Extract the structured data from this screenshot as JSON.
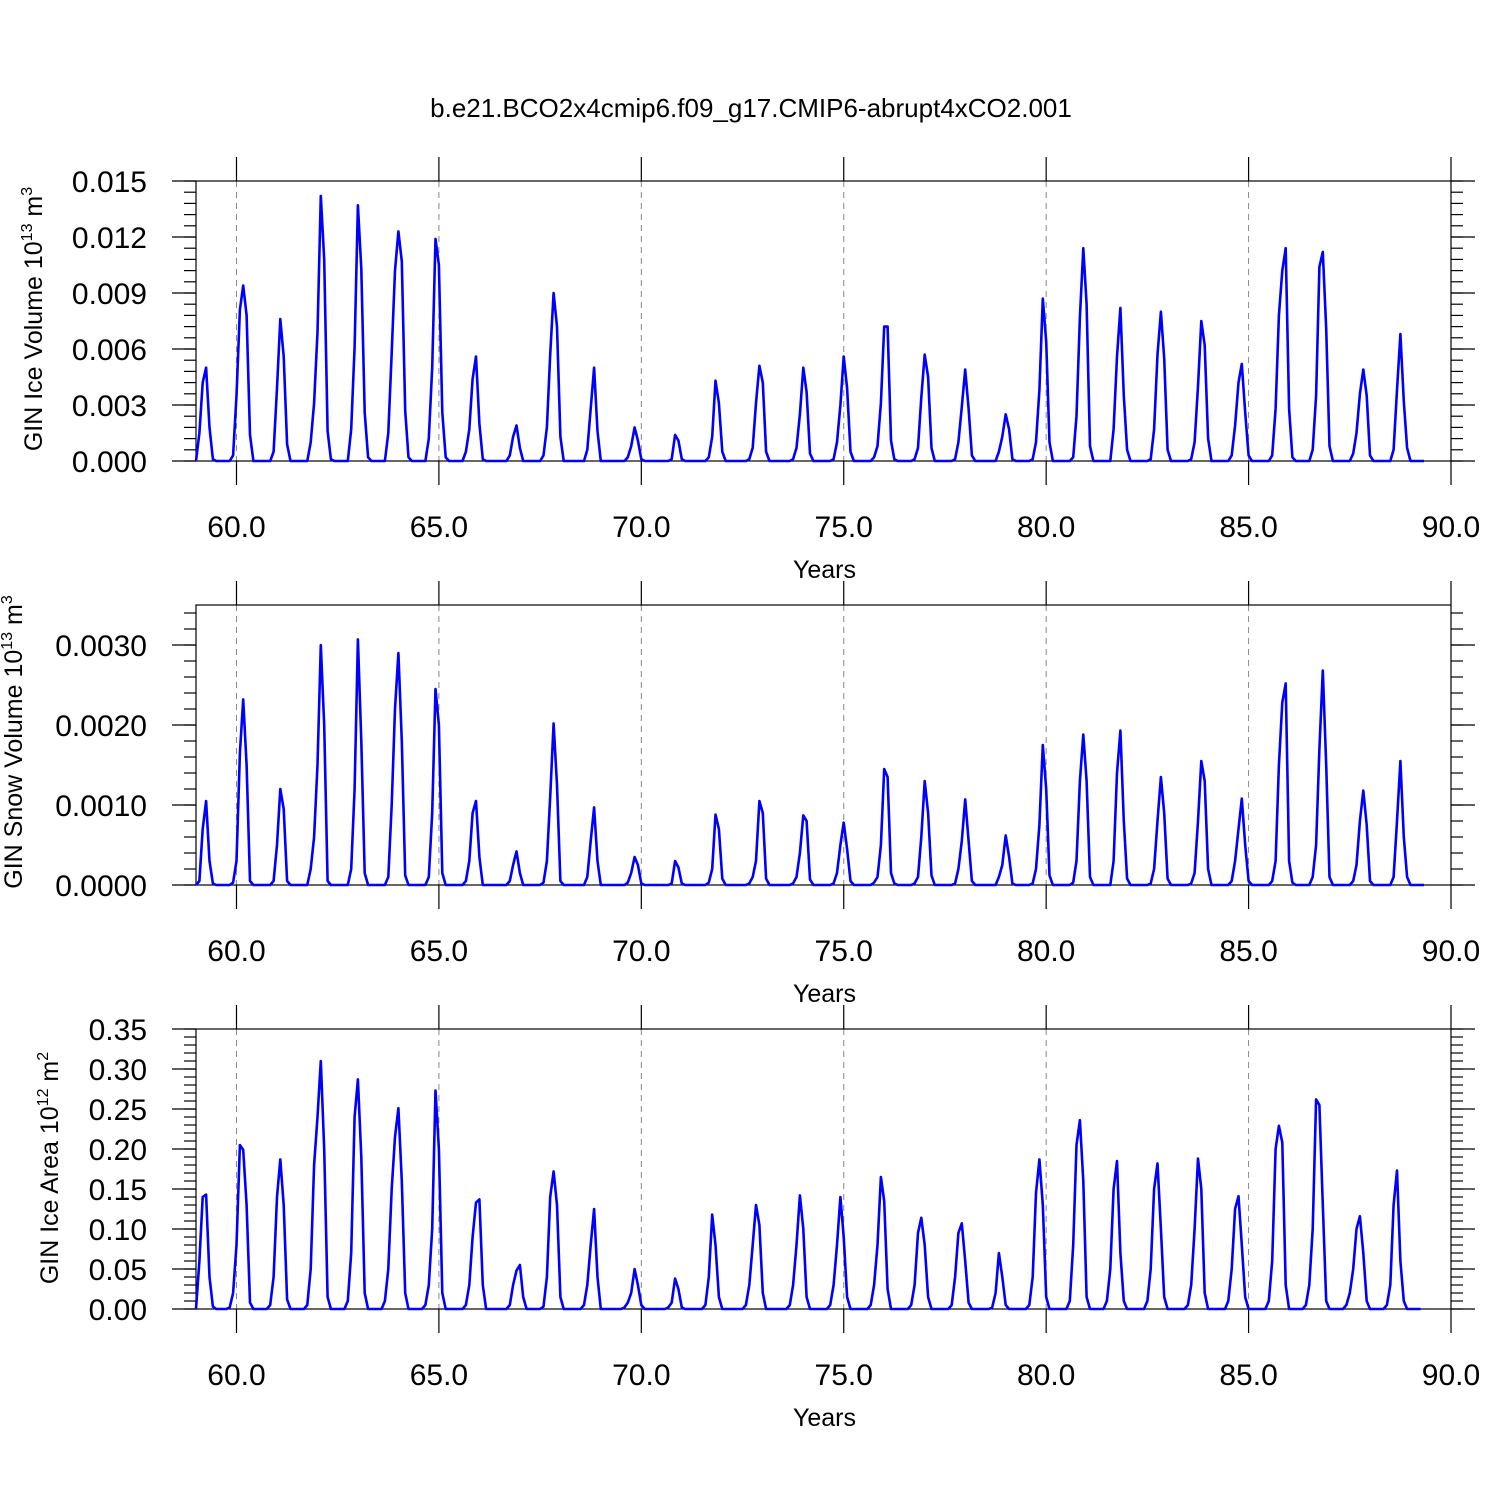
{
  "title": "b.e21.BCO2x4cmip6.f09_g17.CMIP6-abrupt4xCO2.001",
  "colors": {
    "line": "#0000ff",
    "grid": "#888888",
    "axis": "#000000"
  },
  "chart_data": [
    {
      "type": "line",
      "series_name": "GIN Ice Volume",
      "ylabel": "GIN Ice Volume 10",
      "ylabel_exponent": "13",
      "ylabel_unit": "m",
      "ylabel_unit_exponent": "3",
      "xlabel": "Years",
      "xlim": [
        59.0,
        90.0
      ],
      "ylim": [
        0.0,
        0.015
      ],
      "xticks": [
        60,
        65,
        70,
        75,
        80,
        85,
        90
      ],
      "xtick_labels": [
        "60.0",
        "65.0",
        "70.0",
        "75.0",
        "80.0",
        "85.0",
        "90.0"
      ],
      "yticks": [
        0.0,
        0.003,
        0.006,
        0.009,
        0.012,
        0.015
      ],
      "ytick_labels": [
        "0.000",
        "0.003",
        "0.006",
        "0.009",
        "0.012",
        "0.015"
      ],
      "grid": "vertical dashed at major x ticks",
      "start_year": 59.0,
      "values": [
        0.0,
        0.0015,
        0.0042,
        0.005,
        0.0018,
        0.0001,
        0.0,
        0.0,
        0.0,
        0.0,
        0.0,
        0.0003,
        0.0035,
        0.0081,
        0.0094,
        0.0078,
        0.0014,
        0.0,
        0.0,
        0.0,
        0.0,
        0.0,
        0.0,
        0.0005,
        0.0039,
        0.0076,
        0.0056,
        0.0009,
        0.0,
        0.0,
        0.0,
        0.0,
        0.0,
        0.0,
        0.001,
        0.0031,
        0.0069,
        0.0142,
        0.0108,
        0.0016,
        0.0001,
        0.0,
        0.0,
        0.0,
        0.0,
        0.0,
        0.0017,
        0.0061,
        0.0137,
        0.0103,
        0.0026,
        0.0002,
        0.0,
        0.0,
        0.0,
        0.0,
        0.0,
        0.0015,
        0.0058,
        0.0102,
        0.0123,
        0.0107,
        0.0027,
        0.0002,
        0.0,
        0.0,
        0.0,
        0.0,
        0.0,
        0.0012,
        0.005,
        0.0119,
        0.0105,
        0.0026,
        0.0002,
        0.0,
        0.0,
        0.0,
        0.0,
        0.0,
        0.0005,
        0.0017,
        0.0044,
        0.0056,
        0.002,
        0.0001,
        0.0,
        0.0,
        0.0,
        0.0,
        0.0,
        0.0,
        0.0,
        0.0003,
        0.0013,
        0.0019,
        0.0007,
        0.0,
        0.0,
        0.0,
        0.0,
        0.0,
        0.0,
        0.0003,
        0.0018,
        0.0057,
        0.009,
        0.0072,
        0.0013,
        0.0,
        0.0,
        0.0,
        0.0,
        0.0,
        0.0,
        0.0,
        0.0006,
        0.0028,
        0.005,
        0.0016,
        0.0,
        0.0,
        0.0,
        0.0,
        0.0,
        0.0,
        0.0,
        0.0,
        0.0002,
        0.0008,
        0.0018,
        0.0011,
        0.0001,
        0.0,
        0.0,
        0.0,
        0.0,
        0.0,
        0.0,
        0.0,
        0.0,
        0.0001,
        0.0014,
        0.0011,
        0.0001,
        0.0,
        0.0,
        0.0,
        0.0,
        0.0,
        0.0,
        0.0,
        0.0002,
        0.0013,
        0.0043,
        0.0031,
        0.0005,
        0.0,
        0.0,
        0.0,
        0.0,
        0.0,
        0.0,
        0.0,
        0.0001,
        0.0007,
        0.0031,
        0.0051,
        0.0042,
        0.0005,
        0.0,
        0.0,
        0.0,
        0.0,
        0.0,
        0.0,
        0.0,
        0.0001,
        0.0007,
        0.0025,
        0.005,
        0.0037,
        0.0004,
        0.0,
        0.0,
        0.0,
        0.0,
        0.0,
        0.0,
        0.0001,
        0.001,
        0.003,
        0.0056,
        0.0039,
        0.0005,
        0.0,
        0.0,
        0.0,
        0.0,
        0.0,
        0.0,
        0.0002,
        0.0008,
        0.0031,
        0.0072,
        0.0072,
        0.0011,
        0.0001,
        0.0,
        0.0,
        0.0,
        0.0,
        0.0,
        0.0001,
        0.0007,
        0.0034,
        0.0057,
        0.0045,
        0.0007,
        0.0,
        0.0,
        0.0,
        0.0,
        0.0,
        0.0,
        0.0001,
        0.001,
        0.0029,
        0.0049,
        0.0028,
        0.0003,
        0.0,
        0.0,
        0.0,
        0.0,
        0.0,
        0.0,
        0.0,
        0.0005,
        0.0013,
        0.0025,
        0.0017,
        0.0001,
        0.0,
        0.0,
        0.0,
        0.0,
        0.0,
        0.0001,
        0.001,
        0.0038,
        0.0087,
        0.0064,
        0.001,
        0.0,
        0.0,
        0.0,
        0.0,
        0.0,
        0.0,
        0.0002,
        0.0024,
        0.0077,
        0.0114,
        0.0084,
        0.0008,
        0.0,
        0.0,
        0.0,
        0.0,
        0.0,
        0.0,
        0.0017,
        0.0056,
        0.0082,
        0.0035,
        0.0006,
        0.0,
        0.0,
        0.0,
        0.0,
        0.0,
        0.0,
        0.0001,
        0.0017,
        0.0057,
        0.008,
        0.0055,
        0.0006,
        0.0,
        0.0,
        0.0,
        0.0,
        0.0,
        0.0,
        0.0001,
        0.001,
        0.004,
        0.0075,
        0.0062,
        0.0012,
        0.0,
        0.0,
        0.0,
        0.0,
        0.0,
        0.0,
        0.0003,
        0.0019,
        0.0042,
        0.0052,
        0.0026,
        0.0003,
        0.0,
        0.0,
        0.0,
        0.0,
        0.0,
        0.0,
        0.0003,
        0.0028,
        0.0078,
        0.0102,
        0.0114,
        0.0028,
        0.0002,
        0.0,
        0.0,
        0.0,
        0.0,
        0.0,
        0.0006,
        0.0035,
        0.0104,
        0.0112,
        0.0071,
        0.0008,
        0.0,
        0.0,
        0.0,
        0.0,
        0.0,
        0.0,
        0.0004,
        0.0015,
        0.0036,
        0.0049,
        0.0035,
        0.0003,
        0.0,
        0.0,
        0.0,
        0.0,
        0.0,
        0.0,
        0.0006,
        0.0038,
        0.0068,
        0.0032,
        0.0007,
        0.0,
        0.0,
        0.0,
        0.0,
        0.0
      ]
    },
    {
      "type": "line",
      "series_name": "GIN Snow Volume",
      "ylabel": "GIN Snow Volume 10",
      "ylabel_exponent": "13",
      "ylabel_unit": "m",
      "ylabel_unit_exponent": "3",
      "xlabel": "Years",
      "xlim": [
        59.0,
        90.0
      ],
      "ylim": [
        0.0,
        0.0035
      ],
      "xticks": [
        60,
        65,
        70,
        75,
        80,
        85,
        90
      ],
      "xtick_labels": [
        "60.0",
        "65.0",
        "70.0",
        "75.0",
        "80.0",
        "85.0",
        "90.0"
      ],
      "yticks": [
        0.0,
        0.001,
        0.002,
        0.003
      ],
      "ytick_labels": [
        "0.0000",
        "0.0010",
        "0.0020",
        "0.0030"
      ],
      "grid": "vertical dashed at major x ticks",
      "start_year": 59.0,
      "values": [
        0.0,
        5e-05,
        0.0007,
        0.00105,
        0.0003,
        2e-05,
        0.0,
        0.0,
        0.0,
        0.0,
        0.0,
        3e-05,
        0.0003,
        0.00165,
        0.00232,
        0.0015,
        5e-05,
        0.0,
        0.0,
        0.0,
        0.0,
        0.0,
        0.0,
        5e-05,
        0.0005,
        0.0012,
        0.00095,
        5e-05,
        0.0,
        0.0,
        0.0,
        0.0,
        0.0,
        0.0,
        0.0002,
        0.0006,
        0.0015,
        0.003,
        0.002,
        5e-05,
        0.0,
        0.0,
        0.0,
        0.0,
        0.0,
        0.0,
        0.0002,
        0.0012,
        0.00307,
        0.0018,
        0.00015,
        0.0,
        0.0,
        0.0,
        0.0,
        0.0,
        0.0,
        0.0001,
        0.001,
        0.0022,
        0.0029,
        0.0018,
        0.00012,
        0.0,
        0.0,
        0.0,
        0.0,
        0.0,
        0.0,
        0.0001,
        0.0009,
        0.00245,
        0.002,
        0.00015,
        0.0,
        0.0,
        0.0,
        0.0,
        0.0,
        0.0,
        5e-05,
        0.0003,
        0.0009,
        0.00105,
        0.00035,
        0.0,
        0.0,
        0.0,
        0.0,
        0.0,
        0.0,
        0.0,
        0.0,
        5e-05,
        0.00025,
        0.00042,
        0.00015,
        0.0,
        0.0,
        0.0,
        0.0,
        0.0,
        0.0,
        3e-05,
        0.0003,
        0.0011,
        0.00202,
        0.00125,
        5e-05,
        0.0,
        0.0,
        0.0,
        0.0,
        0.0,
        0.0,
        0.0,
        0.0001,
        0.00055,
        0.00097,
        0.0003,
        0.0,
        0.0,
        0.0,
        0.0,
        0.0,
        0.0,
        0.0,
        0.0,
        3e-05,
        0.00015,
        0.00035,
        0.00025,
        2e-05,
        0.0,
        0.0,
        0.0,
        0.0,
        0.0,
        0.0,
        0.0,
        0.0,
        2e-05,
        0.0003,
        0.00022,
        2e-05,
        0.0,
        0.0,
        0.0,
        0.0,
        0.0,
        0.0,
        0.0,
        3e-05,
        0.0002,
        0.00088,
        0.0007,
        8e-05,
        0.0,
        0.0,
        0.0,
        0.0,
        0.0,
        0.0,
        0.0,
        2e-05,
        0.0001,
        0.0003,
        0.00105,
        0.0009,
        8e-05,
        0.0,
        0.0,
        0.0,
        0.0,
        0.0,
        0.0,
        0.0,
        2e-05,
        0.0001,
        0.0004,
        0.00087,
        0.0008,
        7e-05,
        0.0,
        0.0,
        0.0,
        0.0,
        0.0,
        0.0,
        2e-05,
        0.00015,
        0.0005,
        0.00078,
        0.00045,
        5e-05,
        0.0,
        0.0,
        0.0,
        0.0,
        0.0,
        0.0,
        3e-05,
        0.0001,
        0.0005,
        0.00145,
        0.00135,
        0.00015,
        2e-05,
        0.0,
        0.0,
        0.0,
        0.0,
        0.0,
        2e-05,
        0.0001,
        0.0006,
        0.0013,
        0.0009,
        0.00012,
        0.0,
        0.0,
        0.0,
        0.0,
        0.0,
        0.0,
        2e-05,
        0.0002,
        0.00055,
        0.00107,
        0.00055,
        5e-05,
        0.0,
        0.0,
        0.0,
        0.0,
        0.0,
        0.0,
        0.0,
        0.0001,
        0.00025,
        0.00062,
        0.00035,
        2e-05,
        0.0,
        0.0,
        0.0,
        0.0,
        0.0,
        2e-05,
        0.0002,
        0.00075,
        0.00175,
        0.0012,
        0.00012,
        0.0,
        0.0,
        0.0,
        0.0,
        0.0,
        0.0,
        3e-05,
        0.0003,
        0.0013,
        0.00188,
        0.0013,
        0.0001,
        0.0,
        0.0,
        0.0,
        0.0,
        0.0,
        0.0,
        0.0003,
        0.0014,
        0.00193,
        0.0008,
        8e-05,
        0.0,
        0.0,
        0.0,
        0.0,
        0.0,
        0.0,
        2e-05,
        0.0002,
        0.0008,
        0.00135,
        0.0009,
        8e-05,
        0.0,
        0.0,
        0.0,
        0.0,
        0.0,
        0.0,
        2e-05,
        0.00015,
        0.0008,
        0.00155,
        0.0013,
        0.0002,
        0.0,
        0.0,
        0.0,
        0.0,
        0.0,
        0.0,
        5e-05,
        0.0003,
        0.0007,
        0.00108,
        0.0005,
        5e-05,
        0.0,
        0.0,
        0.0,
        0.0,
        0.0,
        0.0,
        5e-05,
        0.0003,
        0.0015,
        0.00228,
        0.00252,
        0.0003,
        3e-05,
        0.0,
        0.0,
        0.0,
        0.0,
        0.0,
        0.0001,
        0.0005,
        0.0017,
        0.00268,
        0.0015,
        0.0001,
        0.0,
        0.0,
        0.0,
        0.0,
        0.0,
        0.0,
        5e-05,
        0.00025,
        0.0008,
        0.00118,
        0.00075,
        5e-05,
        0.0,
        0.0,
        0.0,
        0.0,
        0.0,
        0.0,
        0.0001,
        0.0008,
        0.00155,
        0.0006,
        0.0001,
        0.0,
        0.0,
        0.0,
        0.0,
        0.0
      ]
    },
    {
      "type": "line",
      "series_name": "GIN Ice Area",
      "ylabel": "GIN Ice Area 10",
      "ylabel_exponent": "12",
      "ylabel_unit": "m",
      "ylabel_unit_exponent": "2",
      "xlabel": "Years",
      "xlim": [
        59.0,
        90.0
      ],
      "ylim": [
        0.0,
        0.35
      ],
      "xticks": [
        60,
        65,
        70,
        75,
        80,
        85,
        90
      ],
      "xtick_labels": [
        "60.0",
        "65.0",
        "70.0",
        "75.0",
        "80.0",
        "85.0",
        "90.0"
      ],
      "yticks": [
        0.0,
        0.05,
        0.1,
        0.15,
        0.2,
        0.25,
        0.3,
        0.35
      ],
      "ytick_labels": [
        "0.00",
        "0.05",
        "0.10",
        "0.15",
        "0.20",
        "0.25",
        "0.30",
        "0.35"
      ],
      "grid": "vertical dashed at major x ticks",
      "start_year": 59.0,
      "values": [
        0.0,
        0.06,
        0.14,
        0.143,
        0.04,
        0.003,
        0.0,
        0.0,
        0.0,
        0.0,
        0.002,
        0.02,
        0.08,
        0.205,
        0.199,
        0.13,
        0.008,
        0.0,
        0.0,
        0.0,
        0.0,
        0.0,
        0.005,
        0.04,
        0.14,
        0.187,
        0.13,
        0.012,
        0.0,
        0.0,
        0.0,
        0.0,
        0.0,
        0.005,
        0.05,
        0.18,
        0.24,
        0.31,
        0.2,
        0.015,
        0.0,
        0.0,
        0.0,
        0.0,
        0.0,
        0.01,
        0.07,
        0.24,
        0.287,
        0.19,
        0.02,
        0.0,
        0.0,
        0.0,
        0.0,
        0.0,
        0.01,
        0.05,
        0.15,
        0.215,
        0.251,
        0.16,
        0.02,
        0.0,
        0.0,
        0.0,
        0.0,
        0.0,
        0.005,
        0.03,
        0.1,
        0.273,
        0.2,
        0.02,
        0.0,
        0.0,
        0.0,
        0.0,
        0.0,
        0.0,
        0.005,
        0.03,
        0.09,
        0.133,
        0.137,
        0.03,
        0.0,
        0.0,
        0.0,
        0.0,
        0.0,
        0.0,
        0.0,
        0.005,
        0.03,
        0.048,
        0.055,
        0.015,
        0.0,
        0.0,
        0.0,
        0.0,
        0.0,
        0.003,
        0.04,
        0.14,
        0.172,
        0.13,
        0.015,
        0.0,
        0.0,
        0.0,
        0.0,
        0.0,
        0.0,
        0.005,
        0.03,
        0.08,
        0.125,
        0.04,
        0.0,
        0.0,
        0.0,
        0.0,
        0.0,
        0.0,
        0.0,
        0.002,
        0.008,
        0.02,
        0.05,
        0.03,
        0.005,
        0.0,
        0.0,
        0.0,
        0.0,
        0.0,
        0.0,
        0.0,
        0.002,
        0.008,
        0.038,
        0.025,
        0.002,
        0.0,
        0.0,
        0.0,
        0.0,
        0.0,
        0.0,
        0.005,
        0.04,
        0.118,
        0.08,
        0.015,
        0.0,
        0.0,
        0.0,
        0.0,
        0.0,
        0.0,
        0.0,
        0.005,
        0.03,
        0.08,
        0.13,
        0.105,
        0.02,
        0.0,
        0.0,
        0.0,
        0.0,
        0.0,
        0.0,
        0.0,
        0.005,
        0.03,
        0.08,
        0.142,
        0.1,
        0.015,
        0.0,
        0.0,
        0.0,
        0.0,
        0.0,
        0.0,
        0.005,
        0.03,
        0.08,
        0.14,
        0.09,
        0.015,
        0.0,
        0.0,
        0.0,
        0.0,
        0.0,
        0.0,
        0.005,
        0.03,
        0.08,
        0.165,
        0.135,
        0.025,
        0.0,
        0.0,
        0.0,
        0.0,
        0.0,
        0.0,
        0.005,
        0.03,
        0.095,
        0.114,
        0.08,
        0.015,
        0.0,
        0.0,
        0.0,
        0.0,
        0.0,
        0.0,
        0.005,
        0.04,
        0.095,
        0.107,
        0.06,
        0.008,
        0.0,
        0.0,
        0.0,
        0.0,
        0.0,
        0.0,
        0.002,
        0.02,
        0.07,
        0.04,
        0.005,
        0.0,
        0.0,
        0.0,
        0.0,
        0.0,
        0.0,
        0.005,
        0.04,
        0.145,
        0.187,
        0.13,
        0.015,
        0.0,
        0.0,
        0.0,
        0.0,
        0.0,
        0.0,
        0.01,
        0.08,
        0.205,
        0.236,
        0.16,
        0.015,
        0.0,
        0.0,
        0.0,
        0.0,
        0.0,
        0.01,
        0.05,
        0.15,
        0.185,
        0.07,
        0.01,
        0.0,
        0.0,
        0.0,
        0.0,
        0.0,
        0.0,
        0.01,
        0.05,
        0.15,
        0.182,
        0.1,
        0.015,
        0.0,
        0.0,
        0.0,
        0.0,
        0.0,
        0.0,
        0.005,
        0.03,
        0.1,
        0.188,
        0.15,
        0.02,
        0.0,
        0.0,
        0.0,
        0.0,
        0.0,
        0.0,
        0.01,
        0.05,
        0.125,
        0.141,
        0.08,
        0.015,
        0.0,
        0.0,
        0.0,
        0.0,
        0.0,
        0.0,
        0.01,
        0.06,
        0.2,
        0.229,
        0.208,
        0.03,
        0.0,
        0.0,
        0.0,
        0.0,
        0.0,
        0.005,
        0.03,
        0.1,
        0.262,
        0.255,
        0.13,
        0.01,
        0.0,
        0.0,
        0.0,
        0.0,
        0.0,
        0.005,
        0.02,
        0.05,
        0.1,
        0.116,
        0.07,
        0.01,
        0.0,
        0.0,
        0.0,
        0.0,
        0.0,
        0.005,
        0.03,
        0.13,
        0.173,
        0.06,
        0.01,
        0.0,
        0.0,
        0.0,
        0.0,
        0.0
      ]
    }
  ]
}
